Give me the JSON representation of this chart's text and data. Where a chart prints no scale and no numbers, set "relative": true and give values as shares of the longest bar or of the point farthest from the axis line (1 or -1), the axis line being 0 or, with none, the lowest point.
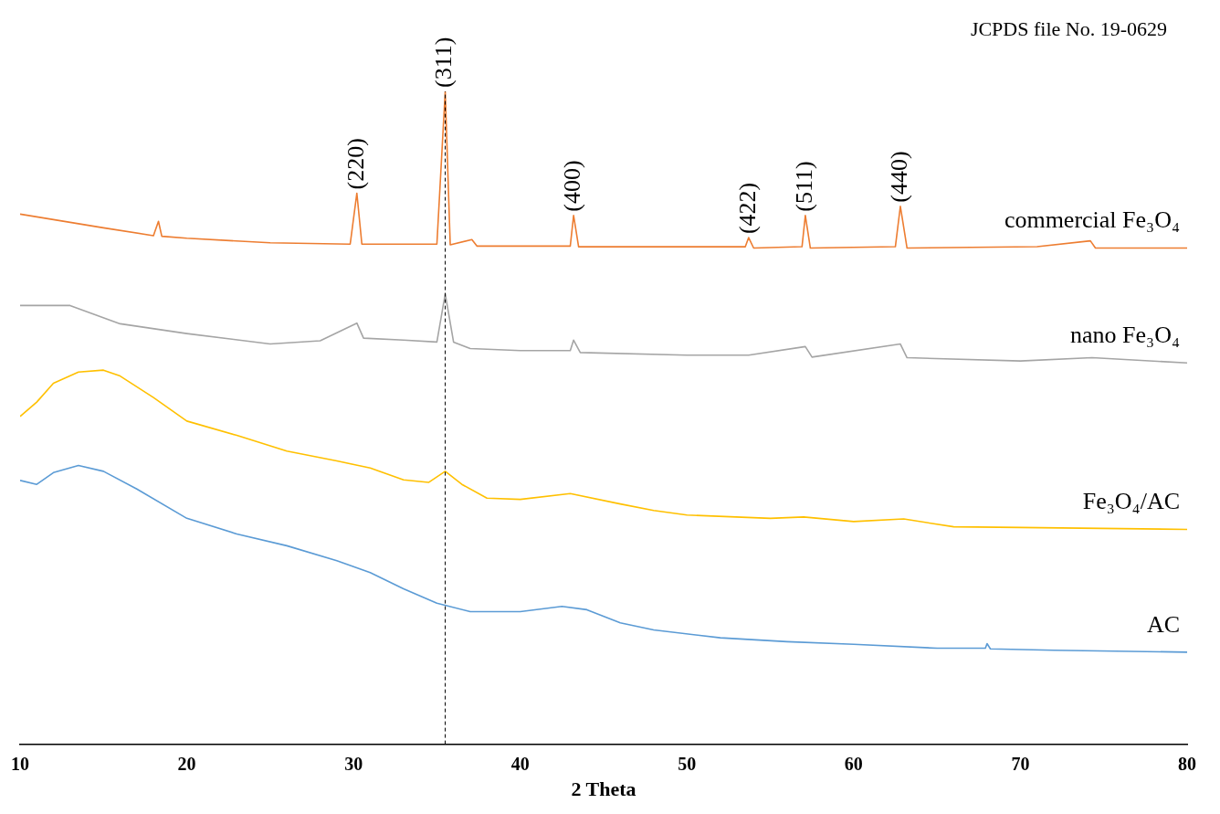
{
  "chart_data": {
    "type": "line",
    "relative": true,
    "xlabel": "2 Theta",
    "xlim": [
      10,
      80
    ],
    "xticks": [
      10,
      20,
      30,
      40,
      50,
      60,
      70,
      80
    ],
    "grid": false,
    "legend": false,
    "annotations": [
      "JCPDS file No. 19-0629",
      {
        "text": "(220)",
        "x": 30.2,
        "y": 0.844
      },
      {
        "text": "(311)",
        "x": 35.5,
        "y": 1
      },
      {
        "text": "(400)",
        "x": 43.2,
        "y": 0.81
      },
      {
        "text": "(422)",
        "x": 53.7,
        "y": 0.776
      },
      {
        "text": "(511)",
        "x": 57.1,
        "y": 0.81
      },
      {
        "text": "(440)",
        "x": 62.8,
        "y": 0.824
      }
    ],
    "ref_lines": [
      {
        "axis": "x",
        "value": 35.5,
        "color": "#000000",
        "line_style": "dashed"
      }
    ],
    "series": [
      {
        "name": "commercial Fe₃O₄",
        "color": "#ed7d31",
        "x": [
          10,
          15,
          18,
          18.3,
          18.5,
          20,
          25,
          29.8,
          30.2,
          30.5,
          35,
          35.5,
          35.8,
          37.1,
          37.4,
          43,
          43.2,
          43.5,
          53.5,
          53.7,
          54,
          56.9,
          57.1,
          57.4,
          62.5,
          62.8,
          63.2,
          71,
          74.2,
          74.5,
          80
        ],
        "values": [
          0.812,
          0.791,
          0.779,
          0.801,
          0.778,
          0.775,
          0.768,
          0.766,
          0.844,
          0.766,
          0.766,
          1,
          0.765,
          0.773,
          0.763,
          0.763,
          0.81,
          0.762,
          0.762,
          0.776,
          0.76,
          0.762,
          0.81,
          0.76,
          0.762,
          0.824,
          0.76,
          0.762,
          0.771,
          0.76,
          0.76
        ]
      },
      {
        "name": "nano Fe₃O₄",
        "color": "#a5a5a5",
        "x": [
          10,
          13,
          16,
          20,
          25,
          28,
          30.2,
          30.6,
          33,
          35,
          35.5,
          36,
          37,
          40,
          43,
          43.2,
          43.6,
          50,
          53.7,
          57.1,
          57.5,
          62.8,
          63.2,
          70,
          74.3,
          80
        ],
        "values": [
          0.672,
          0.672,
          0.644,
          0.629,
          0.613,
          0.618,
          0.645,
          0.622,
          0.619,
          0.616,
          0.69,
          0.616,
          0.606,
          0.603,
          0.603,
          0.619,
          0.6,
          0.596,
          0.596,
          0.609,
          0.593,
          0.613,
          0.592,
          0.587,
          0.592,
          0.584
        ]
      },
      {
        "name": "Fe₃O₄/AC",
        "color": "#ffc000",
        "x": [
          10,
          11,
          12,
          13.5,
          15,
          16,
          18,
          20,
          23,
          26,
          29,
          31,
          33,
          34.5,
          35.5,
          36.5,
          38,
          40,
          43,
          46,
          48,
          50,
          55,
          57,
          60,
          63,
          66,
          70,
          80
        ],
        "values": [
          0.502,
          0.524,
          0.553,
          0.57,
          0.573,
          0.564,
          0.531,
          0.495,
          0.473,
          0.449,
          0.434,
          0.423,
          0.405,
          0.401,
          0.418,
          0.398,
          0.377,
          0.375,
          0.384,
          0.368,
          0.358,
          0.351,
          0.346,
          0.348,
          0.341,
          0.345,
          0.333,
          0.332,
          0.329
        ]
      },
      {
        "name": "AC",
        "color": "#5b9bd5",
        "x": [
          10,
          11,
          12,
          13.5,
          15,
          17,
          20,
          23,
          26,
          29,
          31,
          33,
          35,
          37,
          40,
          42.5,
          44,
          46,
          48,
          52,
          56,
          60,
          65,
          67.9,
          68,
          68.2,
          72,
          80
        ],
        "values": [
          0.404,
          0.398,
          0.416,
          0.427,
          0.418,
          0.391,
          0.346,
          0.322,
          0.304,
          0.281,
          0.263,
          0.238,
          0.216,
          0.203,
          0.203,
          0.211,
          0.206,
          0.186,
          0.175,
          0.163,
          0.157,
          0.153,
          0.147,
          0.147,
          0.154,
          0.146,
          0.144,
          0.141
        ]
      }
    ]
  }
}
